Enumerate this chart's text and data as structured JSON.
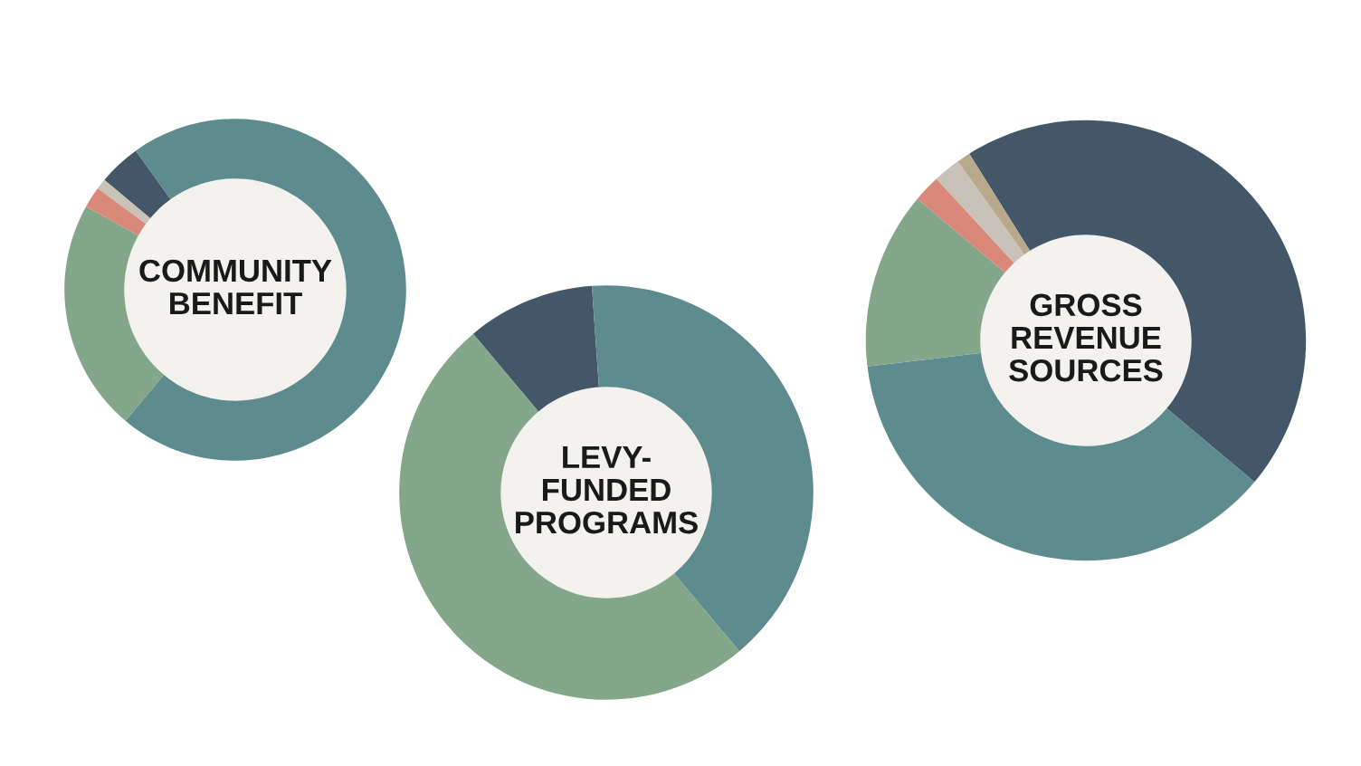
{
  "chart_data": [
    {
      "type": "donut",
      "title": "COMMUNITY\nBENEFIT",
      "categories": [
        null,
        null,
        null,
        null,
        null
      ],
      "values": [
        4,
        71,
        22,
        2,
        1
      ],
      "colors": [
        "#435769",
        "#5e8b8d",
        "#84a68a",
        "#d9887a",
        "#c9c2b8"
      ]
    },
    {
      "type": "donut",
      "title": "LEVY-\nFUNDED\nPROGRAMS",
      "categories": [
        null,
        null,
        null
      ],
      "values": [
        10,
        40,
        50
      ],
      "colors": [
        "#435769",
        "#5e8b8d",
        "#84a68a"
      ]
    },
    {
      "type": "donut",
      "title": "GROSS\nREVENUE\nSOURCES",
      "categories": [
        null,
        null,
        null,
        null,
        null,
        null
      ],
      "values": [
        45,
        37,
        13,
        2,
        2,
        1
      ],
      "colors": [
        "#435769",
        "#5e8b8d",
        "#84a68a",
        "#d9887a",
        "#c9c2b8",
        "#b8a98c"
      ]
    }
  ]
}
